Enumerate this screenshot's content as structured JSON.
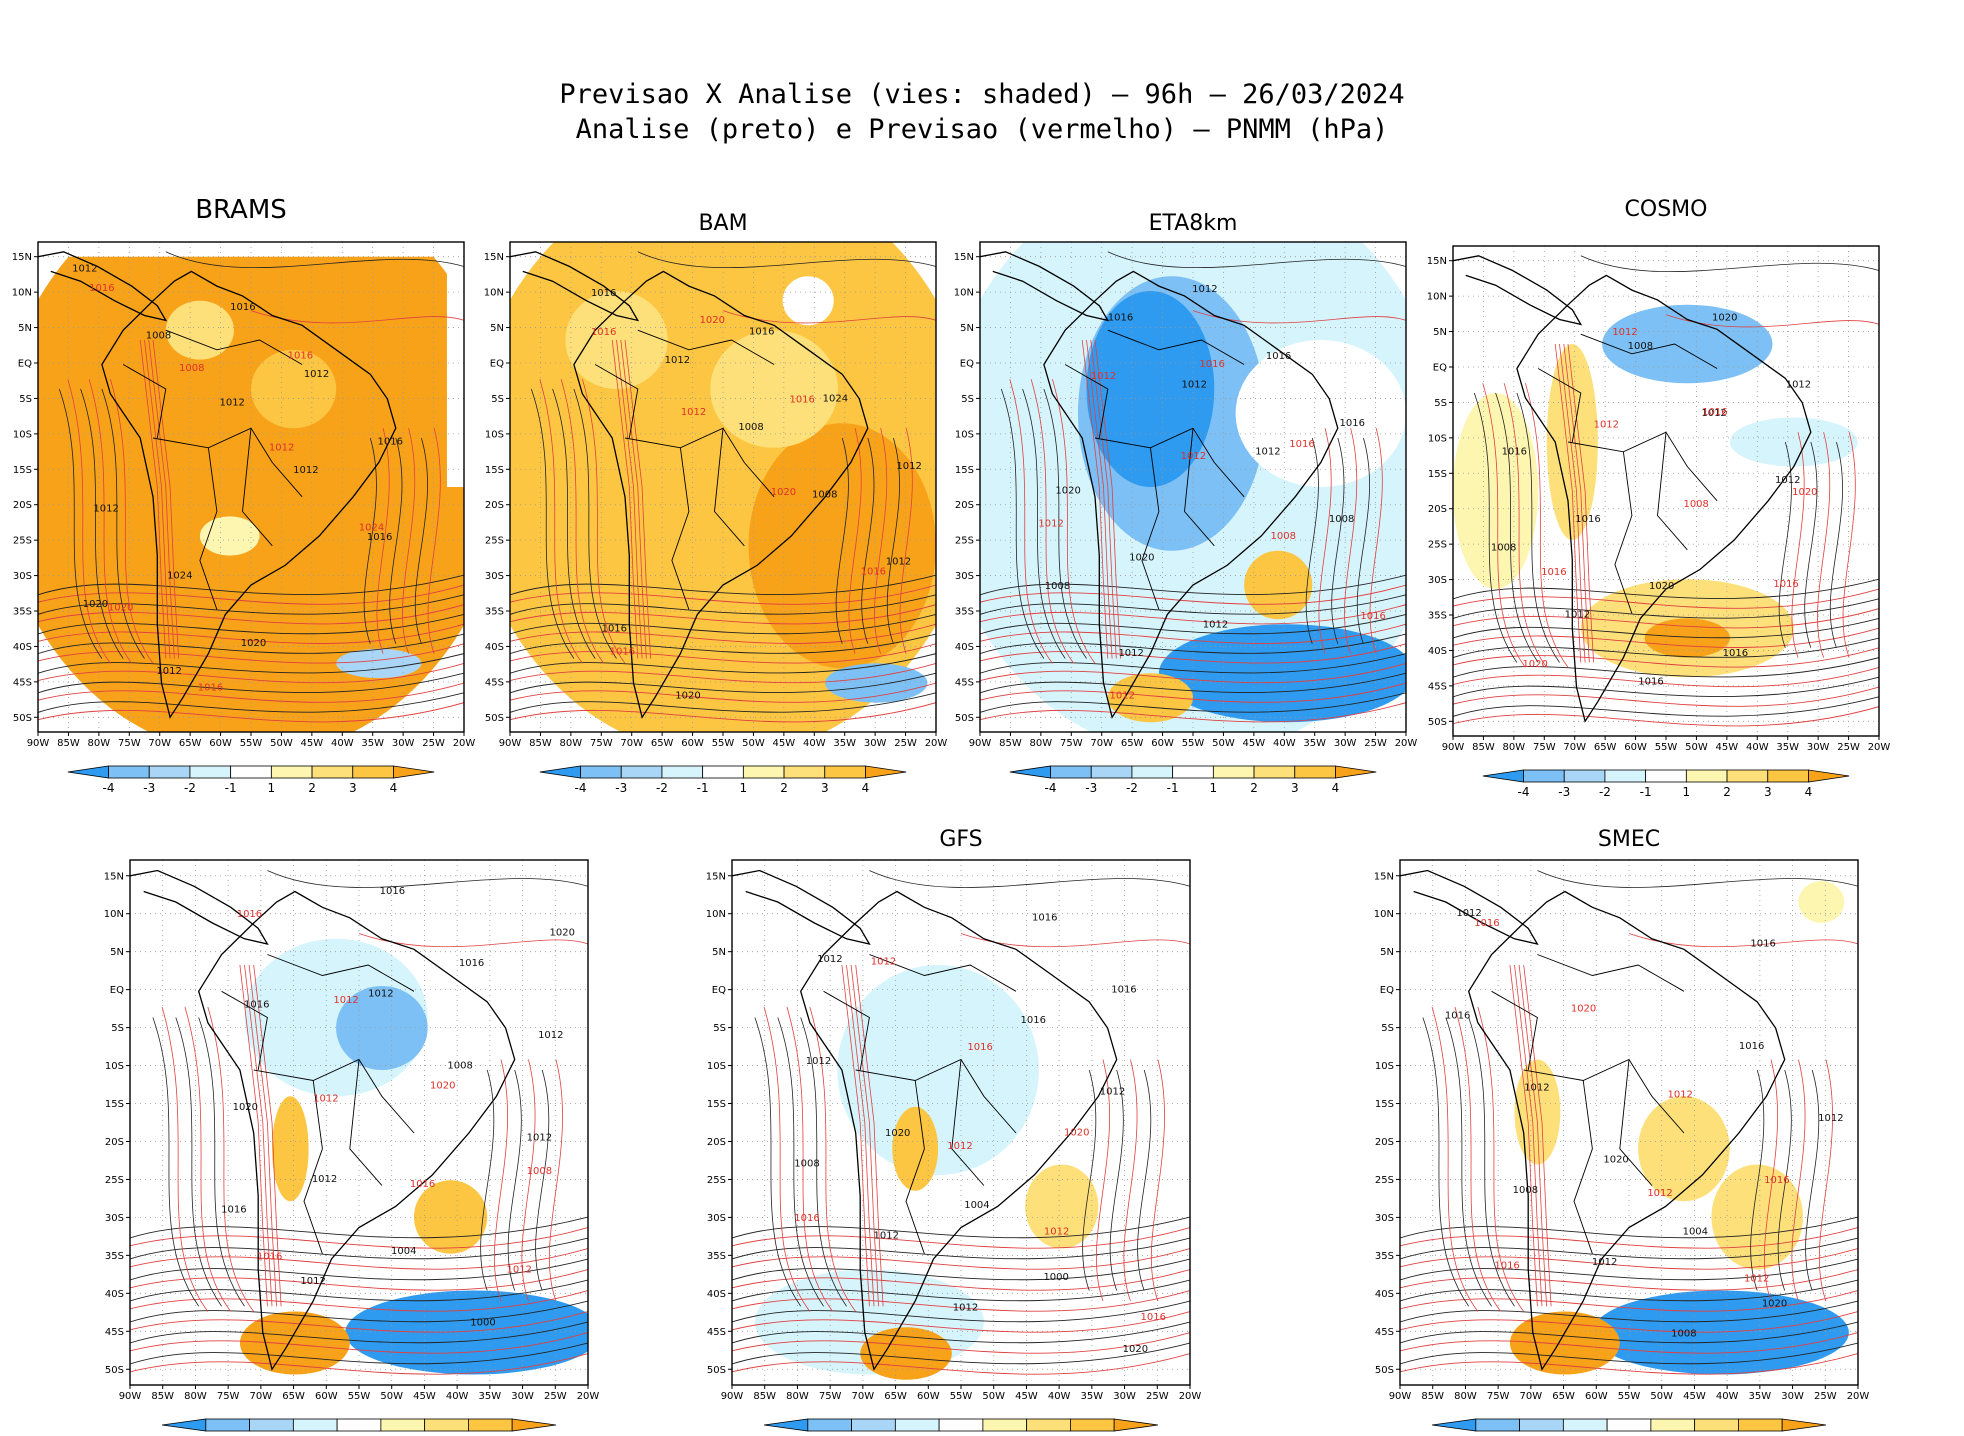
{
  "title_line1": "Previsao X Analise (vies: shaded) – 96h – 26/03/2024",
  "title_line2": "Analise (preto) e Previsao (vermelho) – PNMM (hPa)",
  "x_ticks": [
    "90W",
    "85W",
    "80W",
    "75W",
    "70W",
    "65W",
    "60W",
    "55W",
    "50W",
    "45W",
    "40W",
    "35W",
    "30W",
    "25W",
    "20W"
  ],
  "y_ticks": [
    "15N",
    "10N",
    "5N",
    "EQ",
    "5S",
    "10S",
    "15S",
    "20S",
    "25S",
    "30S",
    "35S",
    "40S",
    "45S",
    "50S"
  ],
  "colorbar_labels": [
    "-4",
    "-3",
    "-2",
    "-1",
    "1",
    "2",
    "3",
    "4"
  ],
  "colorbar_colors": [
    "#2f9bf0",
    "#7cc0f5",
    "#a9d6f7",
    "#d6f4fc",
    "#ffffff",
    "#fdf6b0",
    "#fde07a",
    "#fdc642",
    "#f8a21a"
  ],
  "panels": [
    {
      "id": "brams",
      "title": "BRAMS",
      "bias": "warm-strong",
      "labels_k": [
        "1012",
        "1008",
        "1012",
        "1012",
        "1016",
        "1020",
        "1012",
        "1016",
        "1012",
        "1016",
        "1012",
        "1024",
        "1020"
      ],
      "labels_r": [
        "1016",
        "1008",
        "1012",
        "1024",
        "1020",
        "1016",
        "1016"
      ]
    },
    {
      "id": "bam",
      "title": "BAM",
      "bias": "warm",
      "labels_k": [
        "1016",
        "1012",
        "1008",
        "1008",
        "1012",
        "1016",
        "1020",
        "1016",
        "1024",
        "1012"
      ],
      "labels_r": [
        "1016",
        "1012",
        "1020",
        "1016",
        "1016",
        "1020",
        "1016"
      ]
    },
    {
      "id": "eta8km",
      "title": "ETA8km",
      "bias": "cool",
      "labels_k": [
        "1016",
        "1012",
        "1012",
        "1008",
        "1008",
        "1012",
        "1012",
        "1016",
        "1016",
        "1020",
        "1020",
        "1012"
      ],
      "labels_r": [
        "1012",
        "1012",
        "1008",
        "1016",
        "1012",
        "1016",
        "1016",
        "1012"
      ]
    },
    {
      "id": "cosmo",
      "title": "COSMO",
      "bias": "mixed",
      "labels_k": [
        "1008",
        "1012",
        "1012",
        "1008",
        "1012",
        "1016",
        "1020",
        "1012",
        "1016",
        "1016",
        "1020",
        "1016"
      ],
      "labels_r": [
        "1012",
        "1008",
        "1016",
        "1020",
        "1012",
        "1016",
        "1020",
        "1016"
      ]
    },
    {
      "id": "panel5",
      "title": "",
      "bias": "mixed-b",
      "labels_k": [
        "1012",
        "1008",
        "1012",
        "1016",
        "1012",
        "1016",
        "1016",
        "1012",
        "1020",
        "1012",
        "1004",
        "1000",
        "1020",
        "1016"
      ],
      "labels_r": [
        "1012",
        "1016",
        "1012",
        "1016",
        "1012",
        "1020",
        "1008",
        "1016"
      ]
    },
    {
      "id": "gfs",
      "title": "GFS",
      "bias": "mixed-c",
      "labels_k": [
        "1016",
        "1012",
        "1008",
        "1012",
        "1012",
        "1016",
        "1016",
        "1012",
        "1020",
        "1004",
        "1000",
        "1020",
        "1012"
      ],
      "labels_r": [
        "1012",
        "1012",
        "1016",
        "1012",
        "1016",
        "1020",
        "1016"
      ]
    },
    {
      "id": "smec",
      "title": "SMEC",
      "bias": "mixed-d",
      "labels_k": [
        "1016",
        "1012",
        "1008",
        "1012",
        "1008",
        "1016",
        "1016",
        "1012",
        "1020",
        "1004",
        "1020",
        "1012"
      ],
      "labels_r": [
        "1012",
        "1012",
        "1016",
        "1020",
        "1012",
        "1016",
        "1016"
      ]
    }
  ]
}
